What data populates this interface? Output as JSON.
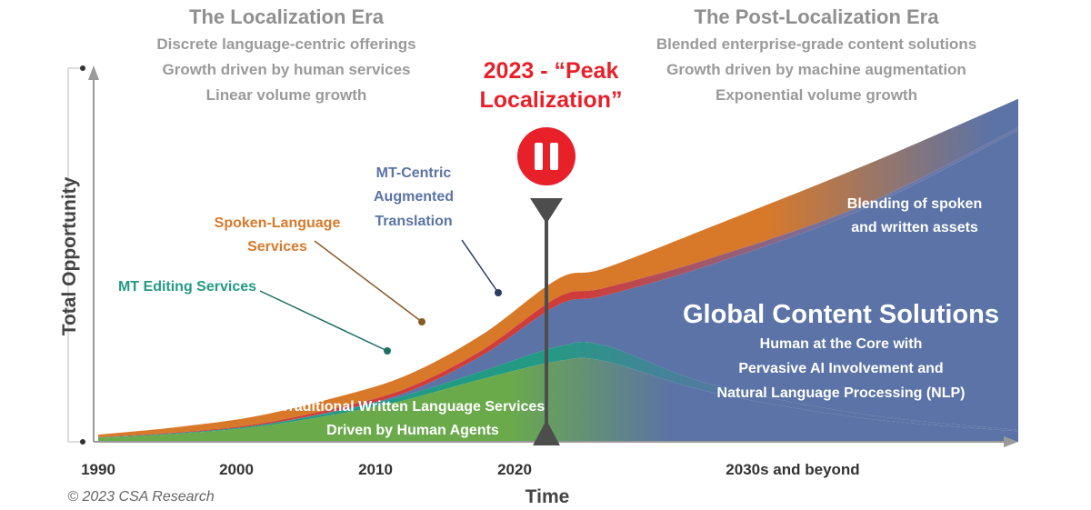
{
  "chart_data": {
    "type": "area",
    "ylabel": "Total Opportunity",
    "xlabel": "Time",
    "x_ticks": [
      "1990",
      "2000",
      "2010",
      "2020",
      "2030s and beyond"
    ],
    "eras": [
      {
        "title": "The Localization Era",
        "lines": [
          "Discrete language-centric offerings",
          "Growth driven by human services",
          "Linear volume growth"
        ]
      },
      {
        "title": "The Post-Localization Era",
        "lines": [
          "Blended enterprise-grade content solutions",
          "Growth driven by machine augmentation",
          "Exponential volume growth"
        ]
      }
    ],
    "peak_marker": {
      "lines": [
        "2023 - “Peak",
        "Localization”"
      ],
      "year": 2023
    },
    "series": [
      {
        "name": "Traditional Written Language Services Driven by Human Agents",
        "label_lines": [
          "Traditional Written Language Services",
          "Driven by Human Agents"
        ],
        "color": "#6aaa4b",
        "x": [
          1990,
          1995,
          2000,
          2005,
          2010,
          2015,
          2020,
          2023,
          2030,
          2040,
          2050
        ],
        "values": [
          3,
          6,
          11,
          20,
          32,
          48,
          62,
          62,
          38,
          18,
          8
        ]
      },
      {
        "name": "MT Editing Services",
        "label_lines": [
          "MT Editing Services"
        ],
        "color": "#239a84",
        "x": [
          1990,
          1995,
          2000,
          2005,
          2010,
          2015,
          2020,
          2023,
          2030,
          2040,
          2050
        ],
        "values": [
          0.3,
          0.6,
          1,
          2,
          3.5,
          6,
          11,
          12,
          6,
          3,
          1
        ]
      },
      {
        "name": "MT-Centric Augmented Translation",
        "label_lines": [
          "MT-Centric",
          "Augmented",
          "Translation"
        ],
        "color": "#5b73a6",
        "x": [
          1990,
          1995,
          2000,
          2005,
          2010,
          2015,
          2020,
          2023,
          2030,
          2040,
          2050
        ],
        "values": [
          0,
          0,
          0,
          0.5,
          2,
          12,
          32,
          38,
          92,
          158,
          230
        ]
      },
      {
        "name": "Red band",
        "label_lines": [],
        "color": "#cf3d3a",
        "x": [
          1990,
          1995,
          2000,
          2005,
          2010,
          2015,
          2020,
          2023,
          2030,
          2040,
          2050
        ],
        "values": [
          0.2,
          0.5,
          1,
          2,
          3,
          4,
          6,
          6,
          5,
          3,
          2
        ]
      },
      {
        "name": "Spoken-Language Services",
        "label_lines": [
          "Spoken-Language",
          "Services"
        ],
        "color": "#d8792a",
        "x": [
          1990,
          1995,
          2000,
          2005,
          2010,
          2015,
          2020,
          2023,
          2030,
          2040,
          2050
        ],
        "values": [
          2,
          4,
          6,
          8,
          10,
          12,
          14,
          15,
          24,
          30,
          22
        ]
      }
    ],
    "callouts": [
      {
        "label_lines": [
          "Blending of spoken",
          "and written assets"
        ]
      },
      {
        "title": "Global Content Solutions",
        "label_lines": [
          "Human at the Core with",
          "Pervasive AI Involvement and",
          "Natural Language Processing (NLP)"
        ]
      }
    ],
    "xlim": [
      1990,
      2050
    ],
    "ylim": [
      0,
      290
    ],
    "copyright": "© 2023 CSA Research"
  }
}
